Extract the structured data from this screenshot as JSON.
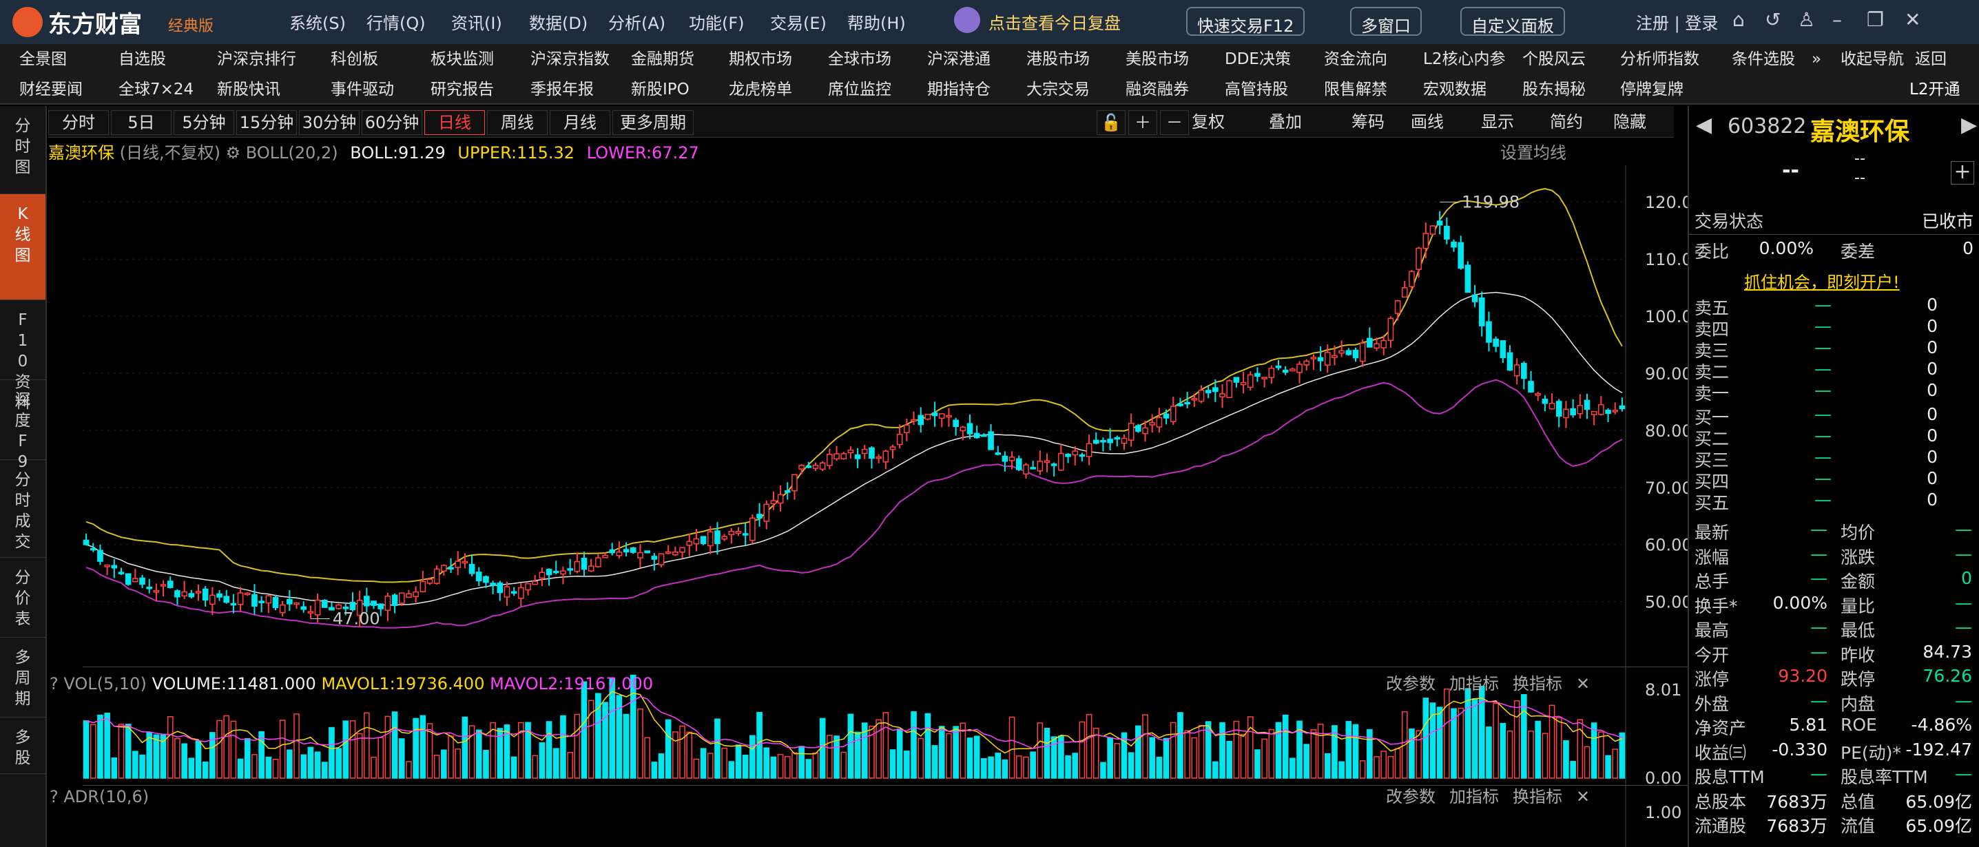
{
  "app": {
    "brand": "东方财富",
    "edition": "经典版",
    "promo": "点击查看今日复盘",
    "menus": [
      "系统(S)",
      "行情(Q)",
      "资讯(I)",
      "数据(D)",
      "分析(A)",
      "功能(F)",
      "交易(E)",
      "帮助(H)"
    ],
    "quick_trade": "快速交易F12",
    "multi_window": "多窗口",
    "custom_panel": "自定义面板",
    "login": "注册 | 登录"
  },
  "nav1": [
    "全景图",
    "自选股",
    "沪深京排行",
    "科创板",
    "板块监测",
    "沪深京指数",
    "金融期货",
    "期权市场",
    "全球市场",
    "沪深港通",
    "港股市场",
    "美股市场",
    "DDE决策",
    "资金流向",
    "L2核心内参",
    "个股风云",
    "分析师指数",
    "条件选股",
    "»",
    "收起导航",
    "返回"
  ],
  "nav2": [
    "财经要闻",
    "全球7×24",
    "新股快讯",
    "事件驱动",
    "研究报告",
    "季报年报",
    "新股IPO",
    "龙虎榜单",
    "席位监控",
    "期指持仓",
    "大宗交易",
    "融资融券",
    "高管持股",
    "限售解禁",
    "宏观数据",
    "股东揭秘",
    "停牌复牌"
  ],
  "nav2_right": "L2开通",
  "sidebar": [
    "分时图",
    "K线图",
    "F10资料",
    "深度F9",
    "分时成交",
    "分价表",
    "多周期",
    "多股"
  ],
  "toolbar": {
    "periods": [
      "分时",
      "5日",
      "5分钟",
      "15分钟",
      "30分钟",
      "60分钟",
      "日线",
      "周线",
      "月线",
      "更多周期"
    ],
    "right": [
      "复权",
      "叠加",
      "筹码",
      "画线",
      "显示",
      "简约",
      "隐藏"
    ]
  },
  "info": {
    "name": "嘉澳环保",
    "mode": "(日线,不复权)",
    "ind": "BOLL(20,2)",
    "boll": "BOLL:91.29",
    "upper": "UPPER:115.32",
    "lower": "LOWER:67.27",
    "setting": "设置均线"
  },
  "vol": {
    "label": "VOL(5,10)",
    "volume": "VOLUME:11481.000",
    "mavol1": "MAVOL1:19736.400",
    "mavol2": "MAVOL2:19167.000",
    "top": "8.01",
    "bottom": "0.00"
  },
  "adr": {
    "label": "ADR(10,6)",
    "top": "1.00"
  },
  "panel_btns": [
    "改参数",
    "加指标",
    "换指标"
  ],
  "chart_data": {
    "type": "candlestick",
    "ylim": [
      42,
      124
    ],
    "yticks": [
      "120.00",
      "110.00",
      "100.00",
      "90.00",
      "80.00",
      "70.00",
      "60.00",
      "50.00"
    ],
    "high_label": "119.98",
    "low_label": "47.00"
  },
  "quote": {
    "code": "603822",
    "name": "嘉澳环保",
    "price": "--",
    "chg": "--",
    "chgp": "--",
    "status_label": "交易状态",
    "status": "已收市",
    "wb_label": "委比",
    "wb": "0.00%",
    "wc_label": "委差",
    "wc": "0",
    "ad": "抓住机会，即刻开户!",
    "sell": [
      "卖五",
      "卖四",
      "卖三",
      "卖二",
      "卖一"
    ],
    "buy": [
      "买一",
      "买二",
      "买三",
      "买四",
      "买五"
    ],
    "dash": "—",
    "zero": "0",
    "stats": [
      [
        "最新",
        "—",
        "均价",
        "—"
      ],
      [
        "涨幅",
        "—",
        "涨跌",
        "—"
      ],
      [
        "总手",
        "—",
        "金额",
        "0"
      ],
      [
        "换手*",
        "0.00%",
        "量比",
        "—"
      ],
      [
        "最高",
        "—",
        "最低",
        "—"
      ],
      [
        "今开",
        "—",
        "昨收",
        "84.73"
      ],
      [
        "涨停",
        "93.20",
        "跌停",
        "76.26"
      ],
      [
        "外盘",
        "—",
        "内盘",
        "—"
      ],
      [
        "净资产",
        "5.81",
        "ROE",
        "-4.86%"
      ],
      [
        "收益㈢",
        "-0.330",
        "PE(动)*",
        "-192.47"
      ],
      [
        "股息TTM",
        "—",
        "股息率TTM",
        "—"
      ],
      [
        "总股本",
        "7683万",
        "总值",
        "65.09亿"
      ],
      [
        "流通股",
        "7683万",
        "流值",
        "65.09亿"
      ]
    ]
  }
}
